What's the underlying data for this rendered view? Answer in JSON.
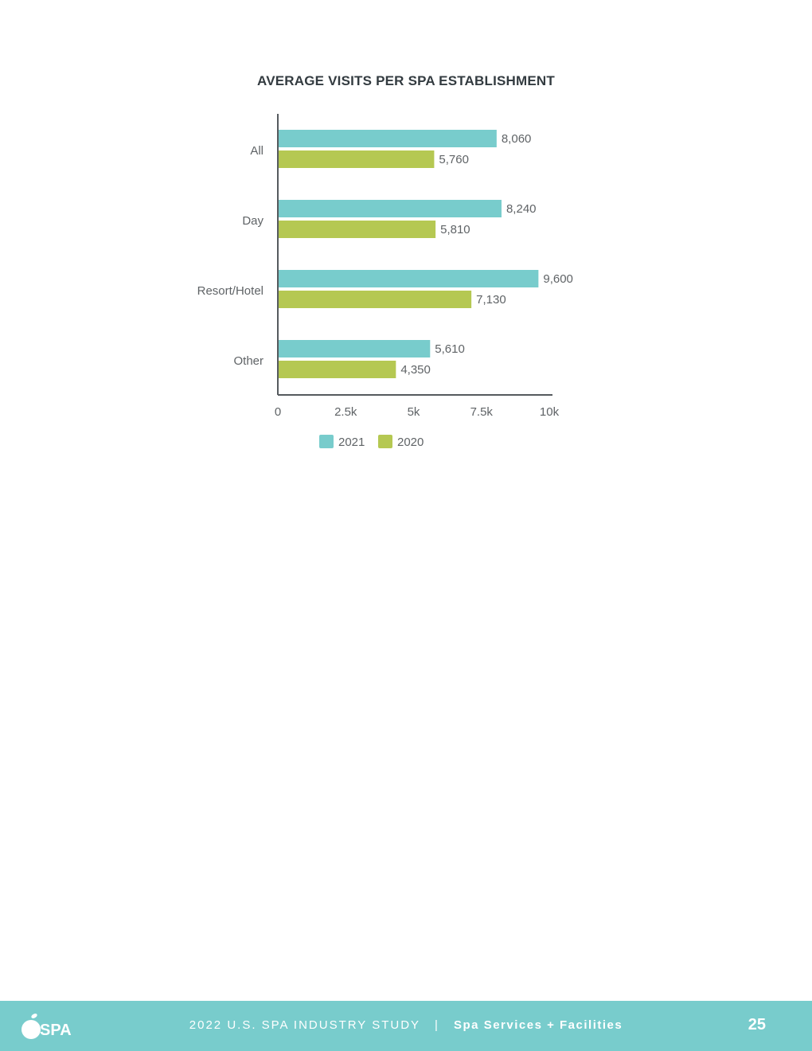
{
  "chart_data": {
    "type": "bar",
    "orientation": "horizontal",
    "title": "AVERAGE VISITS PER SPA ESTABLISHMENT",
    "categories": [
      "All",
      "Day",
      "Resort/Hotel",
      "Other"
    ],
    "series": [
      {
        "name": "2021",
        "color": "#78cccc",
        "values": [
          8060,
          8240,
          9600,
          5610
        ],
        "labels": [
          "8,060",
          "8,240",
          "9,600",
          "5,610"
        ]
      },
      {
        "name": "2020",
        "color": "#b5c852",
        "values": [
          5760,
          5810,
          7130,
          4350
        ],
        "labels": [
          "5,760",
          "5,810",
          "7,130",
          "4,350"
        ]
      }
    ],
    "xlim": [
      0,
      10000
    ],
    "xticks": [
      0,
      2500,
      5000,
      7500,
      10000
    ],
    "xtick_labels": [
      "0",
      "2.5k",
      "5k",
      "7.5k",
      "10k"
    ],
    "grid": false,
    "legend_position": "bottom"
  },
  "footer": {
    "logo_text": "SPA",
    "study": "2022 U.S. SPA INDUSTRY STUDY",
    "separator": "|",
    "section": "Spa Services + Facilities",
    "page_number": "25"
  },
  "colors": {
    "footer_bg": "#78cccc",
    "text": "#5f6366",
    "title": "#333b40",
    "axis": "#555a5e"
  }
}
